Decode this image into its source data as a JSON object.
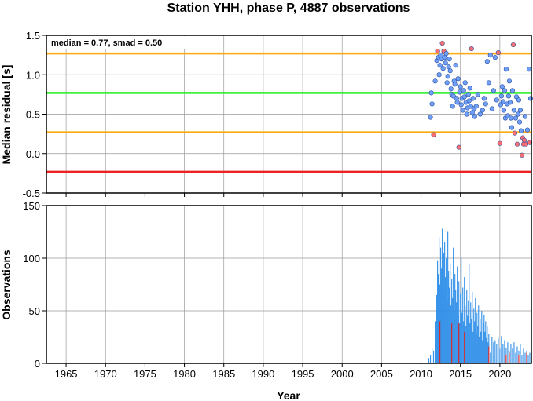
{
  "title": "Station YHH, phase P, 4887 observations",
  "colors": {
    "grid": "#9a9a9a",
    "median_line": "#22ee22",
    "smad_line": "#ffaa11",
    "lower_line": "#ee2222",
    "point_normal": "#6f9ff7",
    "point_outlier": "#ff6f6f",
    "bar": "#2e8ee8",
    "bar_highlight": "#e02020"
  },
  "chart_data": [
    {
      "type": "scatter",
      "ylabel": "Median residual [s]",
      "annotation": "median = 0.77, smad = 0.50",
      "xlim": [
        1962.5,
        2024.0
      ],
      "ylim": [
        -0.5,
        1.5
      ],
      "x_ticks": [
        1965,
        1970,
        1975,
        1980,
        1985,
        1990,
        1995,
        2000,
        2005,
        2010,
        2015,
        2020
      ],
      "y_ticks": [
        -0.5,
        0.0,
        0.5,
        1.0,
        1.5
      ],
      "y_tick_labels": [
        "-0.5",
        "0.0",
        "0.5",
        "1.0",
        "1.5"
      ],
      "hlines": [
        {
          "y": 1.27,
          "role": "upper"
        },
        {
          "y": 0.77,
          "role": "median"
        },
        {
          "y": 0.27,
          "role": "lower"
        },
        {
          "y": -0.23,
          "role": "lowest"
        }
      ],
      "points": [
        [
          2011.2,
          0.46
        ],
        [
          2011.3,
          0.77
        ],
        [
          2011.4,
          0.63
        ],
        [
          2011.6,
          0.24
        ],
        [
          2011.8,
          0.92
        ],
        [
          2012.0,
          1.18
        ],
        [
          2012.1,
          1.3
        ],
        [
          2012.2,
          1.22
        ],
        [
          2012.3,
          1.0
        ],
        [
          2012.4,
          1.12
        ],
        [
          2012.5,
          1.25
        ],
        [
          2012.6,
          1.2
        ],
        [
          2012.7,
          1.4
        ],
        [
          2012.8,
          1.08
        ],
        [
          2012.9,
          1.3
        ],
        [
          2013.0,
          1.22
        ],
        [
          2013.1,
          1.15
        ],
        [
          2013.2,
          1.27
        ],
        [
          2013.3,
          0.9
        ],
        [
          2013.4,
          0.98
        ],
        [
          2013.5,
          1.1
        ],
        [
          2013.6,
          1.2
        ],
        [
          2013.7,
          1.05
        ],
        [
          2013.8,
          0.82
        ],
        [
          2013.9,
          0.75
        ],
        [
          2014.0,
          0.6
        ],
        [
          2014.1,
          0.73
        ],
        [
          2014.2,
          0.92
        ],
        [
          2014.3,
          0.88
        ],
        [
          2014.4,
          1.12
        ],
        [
          2014.5,
          0.7
        ],
        [
          2014.6,
          0.65
        ],
        [
          2014.7,
          0.95
        ],
        [
          2014.8,
          0.08
        ],
        [
          2014.9,
          0.78
        ],
        [
          2015.0,
          0.85
        ],
        [
          2015.1,
          0.62
        ],
        [
          2015.2,
          0.7
        ],
        [
          2015.3,
          0.55
        ],
        [
          2015.4,
          0.8
        ],
        [
          2015.5,
          0.72
        ],
        [
          2015.6,
          0.9
        ],
        [
          2015.7,
          0.65
        ],
        [
          2015.8,
          0.5
        ],
        [
          2015.9,
          0.58
        ],
        [
          2016.0,
          0.75
        ],
        [
          2016.1,
          0.67
        ],
        [
          2016.2,
          0.83
        ],
        [
          2016.3,
          0.6
        ],
        [
          2016.4,
          1.33
        ],
        [
          2016.5,
          0.52
        ],
        [
          2016.6,
          0.7
        ],
        [
          2016.7,
          0.57
        ],
        [
          2016.8,
          0.47
        ],
        [
          2017.0,
          0.6
        ],
        [
          2017.2,
          0.75
        ],
        [
          2017.5,
          0.5
        ],
        [
          2017.8,
          0.55
        ],
        [
          2018.0,
          0.7
        ],
        [
          2018.2,
          0.63
        ],
        [
          2018.4,
          1.17
        ],
        [
          2018.6,
          0.9
        ],
        [
          2018.8,
          1.25
        ],
        [
          2019.0,
          0.57
        ],
        [
          2019.2,
          0.8
        ],
        [
          2019.4,
          1.22
        ],
        [
          2019.6,
          0.68
        ],
        [
          2019.8,
          1.28
        ],
        [
          2020.0,
          0.13
        ],
        [
          2020.1,
          0.62
        ],
        [
          2020.2,
          0.73
        ],
        [
          2020.3,
          0.85
        ],
        [
          2020.4,
          0.66
        ],
        [
          2020.5,
          0.55
        ],
        [
          2020.6,
          0.8
        ],
        [
          2020.7,
          0.45
        ],
        [
          2020.8,
          1.07
        ],
        [
          2020.9,
          0.63
        ],
        [
          2021.0,
          0.48
        ],
        [
          2021.1,
          0.73
        ],
        [
          2021.2,
          0.92
        ],
        [
          2021.3,
          0.65
        ],
        [
          2021.4,
          0.45
        ],
        [
          2021.5,
          0.33
        ],
        [
          2021.6,
          0.8
        ],
        [
          2021.7,
          1.38
        ],
        [
          2021.8,
          0.55
        ],
        [
          2021.9,
          0.26
        ],
        [
          2022.0,
          0.45
        ],
        [
          2022.1,
          0.72
        ],
        [
          2022.2,
          0.12
        ],
        [
          2022.3,
          0.5
        ],
        [
          2022.4,
          0.68
        ],
        [
          2022.5,
          0.4
        ],
        [
          2022.6,
          0.55
        ],
        [
          2022.7,
          0.29
        ],
        [
          2022.8,
          -0.02
        ],
        [
          2022.9,
          0.2
        ],
        [
          2023.0,
          0.12
        ],
        [
          2023.1,
          0.17
        ],
        [
          2023.2,
          0.47
        ],
        [
          2023.3,
          0.12
        ],
        [
          2023.5,
          0.3
        ],
        [
          2023.7,
          1.07
        ],
        [
          2023.8,
          0.14
        ],
        [
          2023.9,
          0.7
        ]
      ]
    },
    {
      "type": "bar",
      "xlabel": "Year",
      "ylabel": "Observations",
      "xlim": [
        1962.5,
        2024.0
      ],
      "ylim": [
        0,
        150
      ],
      "x_ticks": [
        1965,
        1970,
        1975,
        1980,
        1985,
        1990,
        1995,
        2000,
        2005,
        2010,
        2015,
        2020
      ],
      "y_ticks": [
        0,
        50,
        100,
        150
      ],
      "y_tick_labels": [
        "0",
        "50",
        "100",
        "150"
      ],
      "bars": [
        [
          2011.0,
          5
        ],
        [
          2011.2,
          8
        ],
        [
          2011.4,
          15
        ],
        [
          2011.6,
          12
        ],
        [
          2011.8,
          40
        ],
        [
          2012.0,
          65
        ],
        [
          2012.1,
          98
        ],
        [
          2012.2,
          85
        ],
        [
          2012.3,
          120
        ],
        [
          2012.4,
          75
        ],
        [
          2012.5,
          110
        ],
        [
          2012.6,
          90
        ],
        [
          2012.7,
          128
        ],
        [
          2012.8,
          70
        ],
        [
          2012.9,
          105
        ],
        [
          2013.0,
          115
        ],
        [
          2013.1,
          82
        ],
        [
          2013.2,
          100
        ],
        [
          2013.3,
          60
        ],
        [
          2013.4,
          125
        ],
        [
          2013.5,
          88
        ],
        [
          2013.6,
          72
        ],
        [
          2013.7,
          95
        ],
        [
          2013.8,
          55
        ],
        [
          2013.9,
          80
        ],
        [
          2014.0,
          62
        ],
        [
          2014.1,
          110
        ],
        [
          2014.2,
          50
        ],
        [
          2014.3,
          85
        ],
        [
          2014.4,
          70
        ],
        [
          2014.5,
          58
        ],
        [
          2014.6,
          92
        ],
        [
          2014.7,
          45
        ],
        [
          2014.8,
          78
        ],
        [
          2014.9,
          38
        ],
        [
          2015.0,
          66
        ],
        [
          2015.1,
          100
        ],
        [
          2015.2,
          48
        ],
        [
          2015.3,
          72
        ],
        [
          2015.4,
          40
        ],
        [
          2015.5,
          82
        ],
        [
          2015.6,
          55
        ],
        [
          2015.7,
          35
        ],
        [
          2015.8,
          70
        ],
        [
          2015.9,
          45
        ],
        [
          2016.0,
          60
        ],
        [
          2016.1,
          95
        ],
        [
          2016.2,
          38
        ],
        [
          2016.3,
          58
        ],
        [
          2016.4,
          42
        ],
        [
          2016.5,
          68
        ],
        [
          2016.6,
          30
        ],
        [
          2016.7,
          52
        ],
        [
          2016.8,
          40
        ],
        [
          2016.9,
          62
        ],
        [
          2017.0,
          28
        ],
        [
          2017.1,
          48
        ],
        [
          2017.2,
          35
        ],
        [
          2017.3,
          55
        ],
        [
          2017.4,
          25
        ],
        [
          2017.5,
          42
        ],
        [
          2017.6,
          30
        ],
        [
          2017.7,
          50
        ],
        [
          2017.8,
          22
        ],
        [
          2017.9,
          38
        ],
        [
          2018.0,
          46
        ],
        [
          2018.1,
          30
        ],
        [
          2018.2,
          40
        ],
        [
          2018.3,
          24
        ],
        [
          2018.4,
          35
        ],
        [
          2018.5,
          20
        ],
        [
          2018.6,
          28
        ],
        [
          2018.8,
          10
        ],
        [
          2019.0,
          25
        ],
        [
          2019.2,
          20
        ],
        [
          2019.4,
          22
        ],
        [
          2019.6,
          18
        ],
        [
          2019.8,
          24
        ],
        [
          2020.0,
          14
        ],
        [
          2020.2,
          26
        ],
        [
          2020.4,
          18
        ],
        [
          2020.6,
          22
        ],
        [
          2020.8,
          15
        ],
        [
          2021.0,
          20
        ],
        [
          2021.2,
          12
        ],
        [
          2021.4,
          18
        ],
        [
          2021.6,
          14
        ],
        [
          2021.8,
          20
        ],
        [
          2022.0,
          10
        ],
        [
          2022.2,
          16
        ],
        [
          2022.4,
          12
        ],
        [
          2022.6,
          18
        ],
        [
          2022.8,
          8
        ],
        [
          2023.0,
          14
        ],
        [
          2023.2,
          10
        ],
        [
          2023.4,
          12
        ],
        [
          2023.6,
          8
        ],
        [
          2023.8,
          10
        ]
      ],
      "highlight_bars": [
        [
          2012.4,
          40
        ],
        [
          2013.9,
          38
        ],
        [
          2014.8,
          38
        ],
        [
          2015.5,
          30
        ],
        [
          2018.6,
          16
        ],
        [
          2020.8,
          8
        ],
        [
          2021.2,
          10
        ],
        [
          2022.4,
          8
        ],
        [
          2023.4,
          10
        ]
      ]
    }
  ]
}
